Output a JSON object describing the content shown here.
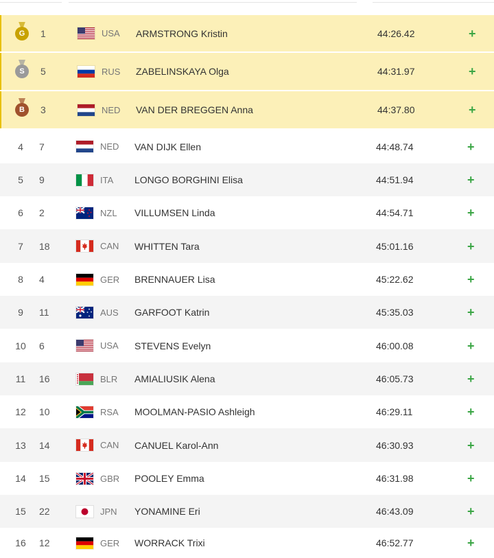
{
  "colors": {
    "gold": "#c8a200",
    "silver": "#9a9a9a",
    "bronze": "#a0522d",
    "medal_row_bg": "#fcf0b8",
    "expand_icon": "#3aa544"
  },
  "results": [
    {
      "medal": "G",
      "medal_type": "gold",
      "bib": "1",
      "flag": "usa",
      "noc": "USA",
      "name": "ARMSTRONG Kristin",
      "time": "44:26.42",
      "expand": "+"
    },
    {
      "medal": "S",
      "medal_type": "silver",
      "bib": "5",
      "flag": "rus",
      "noc": "RUS",
      "name": "ZABELINSKAYA Olga",
      "time": "44:31.97",
      "expand": "+"
    },
    {
      "medal": "B",
      "medal_type": "bronze",
      "bib": "3",
      "flag": "ned",
      "noc": "NED",
      "name": "VAN DER BREGGEN Anna",
      "time": "44:37.80",
      "expand": "+"
    },
    {
      "rank": "4",
      "bib": "7",
      "flag": "ned",
      "noc": "NED",
      "name": "VAN DIJK Ellen",
      "time": "44:48.74",
      "expand": "+"
    },
    {
      "rank": "5",
      "bib": "9",
      "flag": "ita",
      "noc": "ITA",
      "name": "LONGO BORGHINI Elisa",
      "time": "44:51.94",
      "expand": "+"
    },
    {
      "rank": "6",
      "bib": "2",
      "flag": "nzl",
      "noc": "NZL",
      "name": "VILLUMSEN Linda",
      "time": "44:54.71",
      "expand": "+"
    },
    {
      "rank": "7",
      "bib": "18",
      "flag": "can",
      "noc": "CAN",
      "name": "WHITTEN Tara",
      "time": "45:01.16",
      "expand": "+"
    },
    {
      "rank": "8",
      "bib": "4",
      "flag": "ger",
      "noc": "GER",
      "name": "BRENNAUER Lisa",
      "time": "45:22.62",
      "expand": "+"
    },
    {
      "rank": "9",
      "bib": "11",
      "flag": "aus",
      "noc": "AUS",
      "name": "GARFOOT Katrin",
      "time": "45:35.03",
      "expand": "+"
    },
    {
      "rank": "10",
      "bib": "6",
      "flag": "usa",
      "noc": "USA",
      "name": "STEVENS Evelyn",
      "time": "46:00.08",
      "expand": "+"
    },
    {
      "rank": "11",
      "bib": "16",
      "flag": "blr",
      "noc": "BLR",
      "name": "AMIALIUSIK Alena",
      "time": "46:05.73",
      "expand": "+"
    },
    {
      "rank": "12",
      "bib": "10",
      "flag": "rsa",
      "noc": "RSA",
      "name": "MOOLMAN-PASIO Ashleigh",
      "time": "46:29.11",
      "expand": "+"
    },
    {
      "rank": "13",
      "bib": "14",
      "flag": "can",
      "noc": "CAN",
      "name": "CANUEL Karol-Ann",
      "time": "46:30.93",
      "expand": "+"
    },
    {
      "rank": "14",
      "bib": "15",
      "flag": "gbr",
      "noc": "GBR",
      "name": "POOLEY Emma",
      "time": "46:31.98",
      "expand": "+"
    },
    {
      "rank": "15",
      "bib": "22",
      "flag": "jpn",
      "noc": "JPN",
      "name": "YONAMINE Eri",
      "time": "46:43.09",
      "expand": "+"
    },
    {
      "rank": "16",
      "bib": "12",
      "flag": "ger",
      "noc": "GER",
      "name": "WORRACK Trixi",
      "time": "46:52.77",
      "expand": "+"
    }
  ]
}
